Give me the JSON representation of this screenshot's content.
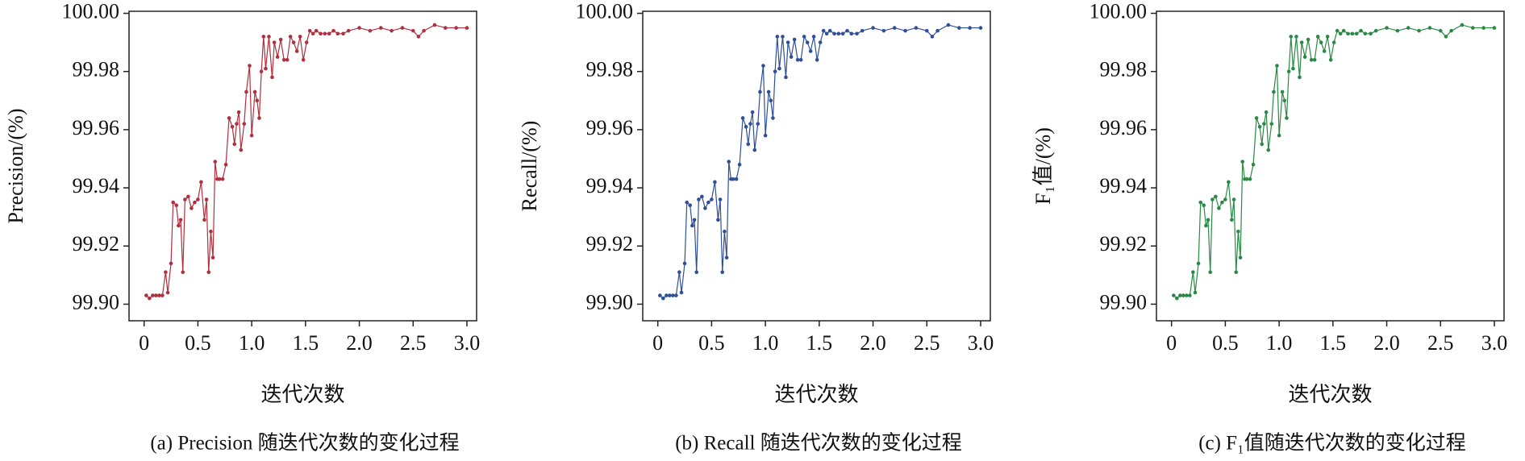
{
  "chart_data": [
    {
      "type": "line",
      "y_label": "Precision/(%)",
      "x_label": "迭代次数",
      "caption": "(a) Precision 随迭代次数的变化过程",
      "xlim": [
        -0.14,
        3.09
      ],
      "ylim": [
        99.8943,
        100.0007
      ],
      "xticks": [
        0,
        0.5,
        {
          "value": 1,
          "label": "1.0"
        },
        1.5,
        {
          "value": 2,
          "label": "2.0"
        },
        2.5,
        {
          "value": 3,
          "label": "3.0"
        }
      ],
      "yticks": [
        {
          "value": 99.9,
          "label": "99.90"
        },
        {
          "value": 99.92,
          "label": "99.92"
        },
        {
          "value": 99.94,
          "label": "99.94"
        },
        {
          "value": 99.96,
          "label": "99.96"
        },
        {
          "value": 99.98,
          "label": "99.98"
        },
        {
          "value": 100,
          "label": "100.00"
        }
      ],
      "x": [
        0.02,
        0.05,
        0.08,
        0.11,
        0.14,
        0.17,
        0.2,
        0.22,
        0.25,
        0.27,
        0.3,
        0.32,
        0.34,
        0.36,
        0.38,
        0.41,
        0.44,
        0.47,
        0.5,
        0.53,
        0.56,
        0.58,
        0.6,
        0.62,
        0.64,
        0.66,
        0.68,
        0.7,
        0.73,
        0.76,
        0.79,
        0.82,
        0.84,
        0.86,
        0.88,
        0.9,
        0.93,
        0.95,
        0.98,
        1.0,
        1.03,
        1.05,
        1.07,
        1.09,
        1.11,
        1.13,
        1.16,
        1.19,
        1.21,
        1.24,
        1.27,
        1.3,
        1.33,
        1.36,
        1.39,
        1.42,
        1.45,
        1.48,
        1.51,
        1.54,
        1.57,
        1.6,
        1.64,
        1.68,
        1.72,
        1.76,
        1.8,
        1.85,
        1.9,
        2.0,
        2.1,
        2.2,
        2.3,
        2.4,
        2.5,
        2.55,
        2.6,
        2.7,
        2.8,
        2.9,
        3.0
      ],
      "series": [
        {
          "color": "#b0303f",
          "values": [
            99.903,
            99.902,
            99.903,
            99.903,
            99.903,
            99.903,
            99.911,
            99.904,
            99.914,
            99.935,
            99.934,
            99.927,
            99.929,
            99.911,
            99.936,
            99.937,
            99.933,
            99.935,
            99.936,
            99.942,
            99.929,
            99.936,
            99.911,
            99.925,
            99.916,
            99.949,
            99.943,
            99.943,
            99.943,
            99.948,
            99.964,
            99.961,
            99.955,
            99.962,
            99.966,
            99.953,
            99.962,
            99.973,
            99.982,
            99.958,
            99.973,
            99.97,
            99.964,
            99.98,
            99.992,
            99.981,
            99.992,
            99.978,
            99.99,
            99.985,
            99.991,
            99.984,
            99.984,
            99.992,
            99.99,
            99.987,
            99.992,
            99.984,
            99.99,
            99.994,
            99.993,
            99.994,
            99.993,
            99.993,
            99.993,
            99.994,
            99.993,
            99.993,
            99.994,
            99.995,
            99.994,
            99.995,
            99.994,
            99.995,
            99.994,
            99.992,
            99.994,
            99.996,
            99.995,
            99.995,
            99.995
          ]
        }
      ]
    },
    {
      "type": "line",
      "y_label": "Recall/(%)",
      "x_label": "迭代次数",
      "caption": "(b) Recall 随迭代次数的变化过程",
      "xlim": [
        -0.14,
        3.09
      ],
      "ylim": [
        99.8943,
        100.0007
      ],
      "xticks": [
        0,
        0.5,
        {
          "value": 1,
          "label": "1.0"
        },
        1.5,
        {
          "value": 2,
          "label": "2.0"
        },
        2.5,
        {
          "value": 3,
          "label": "3.0"
        }
      ],
      "yticks": [
        {
          "value": 99.9,
          "label": "99.90"
        },
        {
          "value": 99.92,
          "label": "99.92"
        },
        {
          "value": 99.94,
          "label": "99.94"
        },
        {
          "value": 99.96,
          "label": "99.96"
        },
        {
          "value": 99.98,
          "label": "99.98"
        },
        {
          "value": 100,
          "label": "100.00"
        }
      ],
      "x": [
        0.02,
        0.05,
        0.08,
        0.11,
        0.14,
        0.17,
        0.2,
        0.22,
        0.25,
        0.27,
        0.3,
        0.32,
        0.34,
        0.36,
        0.38,
        0.41,
        0.44,
        0.47,
        0.5,
        0.53,
        0.56,
        0.58,
        0.6,
        0.62,
        0.64,
        0.66,
        0.68,
        0.7,
        0.73,
        0.76,
        0.79,
        0.82,
        0.84,
        0.86,
        0.88,
        0.9,
        0.93,
        0.95,
        0.98,
        1.0,
        1.03,
        1.05,
        1.07,
        1.09,
        1.11,
        1.13,
        1.16,
        1.19,
        1.21,
        1.24,
        1.27,
        1.3,
        1.33,
        1.36,
        1.39,
        1.42,
        1.45,
        1.48,
        1.51,
        1.54,
        1.57,
        1.6,
        1.64,
        1.68,
        1.72,
        1.76,
        1.8,
        1.85,
        1.9,
        2.0,
        2.1,
        2.2,
        2.3,
        2.4,
        2.5,
        2.55,
        2.6,
        2.7,
        2.8,
        2.9,
        3.0
      ],
      "series": [
        {
          "color": "#2f4f9a",
          "values": [
            99.903,
            99.902,
            99.903,
            99.903,
            99.903,
            99.903,
            99.911,
            99.904,
            99.914,
            99.935,
            99.934,
            99.927,
            99.929,
            99.911,
            99.936,
            99.937,
            99.933,
            99.935,
            99.936,
            99.942,
            99.929,
            99.936,
            99.911,
            99.925,
            99.916,
            99.949,
            99.943,
            99.943,
            99.943,
            99.948,
            99.964,
            99.961,
            99.955,
            99.962,
            99.966,
            99.953,
            99.962,
            99.973,
            99.982,
            99.958,
            99.973,
            99.97,
            99.964,
            99.98,
            99.992,
            99.981,
            99.992,
            99.978,
            99.99,
            99.985,
            99.991,
            99.984,
            99.984,
            99.992,
            99.99,
            99.987,
            99.992,
            99.984,
            99.99,
            99.994,
            99.993,
            99.994,
            99.993,
            99.993,
            99.993,
            99.994,
            99.993,
            99.993,
            99.994,
            99.995,
            99.994,
            99.995,
            99.994,
            99.995,
            99.994,
            99.992,
            99.994,
            99.996,
            99.995,
            99.995,
            99.995
          ]
        }
      ]
    },
    {
      "type": "line",
      "y_label": "F₁值/(%)",
      "x_label": "迭代次数",
      "caption": "(c) F₁值随迭代次数的变化过程",
      "xlim": [
        -0.14,
        3.09
      ],
      "ylim": [
        99.8943,
        100.0007
      ],
      "xticks": [
        0,
        0.5,
        {
          "value": 1,
          "label": "1.0"
        },
        1.5,
        {
          "value": 2,
          "label": "2.0"
        },
        2.5,
        {
          "value": 3,
          "label": "3.0"
        }
      ],
      "yticks": [
        {
          "value": 99.9,
          "label": "99.90"
        },
        {
          "value": 99.92,
          "label": "99.92"
        },
        {
          "value": 99.94,
          "label": "99.94"
        },
        {
          "value": 99.96,
          "label": "99.96"
        },
        {
          "value": 99.98,
          "label": "99.98"
        },
        {
          "value": 100,
          "label": "100.00"
        }
      ],
      "x": [
        0.02,
        0.05,
        0.08,
        0.11,
        0.14,
        0.17,
        0.2,
        0.22,
        0.25,
        0.27,
        0.3,
        0.32,
        0.34,
        0.36,
        0.38,
        0.41,
        0.44,
        0.47,
        0.5,
        0.53,
        0.56,
        0.58,
        0.6,
        0.62,
        0.64,
        0.66,
        0.68,
        0.7,
        0.73,
        0.76,
        0.79,
        0.82,
        0.84,
        0.86,
        0.88,
        0.9,
        0.93,
        0.95,
        0.98,
        1.0,
        1.03,
        1.05,
        1.07,
        1.09,
        1.11,
        1.13,
        1.16,
        1.19,
        1.21,
        1.24,
        1.27,
        1.3,
        1.33,
        1.36,
        1.39,
        1.42,
        1.45,
        1.48,
        1.51,
        1.54,
        1.57,
        1.6,
        1.64,
        1.68,
        1.72,
        1.76,
        1.8,
        1.85,
        1.9,
        2.0,
        2.1,
        2.2,
        2.3,
        2.4,
        2.5,
        2.55,
        2.6,
        2.7,
        2.8,
        2.9,
        3.0
      ],
      "series": [
        {
          "color": "#2a8a45",
          "values": [
            99.903,
            99.902,
            99.903,
            99.903,
            99.903,
            99.903,
            99.911,
            99.904,
            99.914,
            99.935,
            99.934,
            99.927,
            99.929,
            99.911,
            99.936,
            99.937,
            99.933,
            99.935,
            99.936,
            99.942,
            99.929,
            99.936,
            99.911,
            99.925,
            99.916,
            99.949,
            99.943,
            99.943,
            99.943,
            99.948,
            99.964,
            99.961,
            99.955,
            99.962,
            99.966,
            99.953,
            99.962,
            99.973,
            99.982,
            99.958,
            99.973,
            99.97,
            99.964,
            99.98,
            99.992,
            99.981,
            99.992,
            99.978,
            99.99,
            99.985,
            99.991,
            99.984,
            99.984,
            99.992,
            99.99,
            99.987,
            99.992,
            99.984,
            99.99,
            99.994,
            99.993,
            99.994,
            99.993,
            99.993,
            99.993,
            99.994,
            99.993,
            99.993,
            99.994,
            99.995,
            99.994,
            99.995,
            99.994,
            99.995,
            99.994,
            99.992,
            99.994,
            99.996,
            99.995,
            99.995,
            99.995
          ]
        }
      ]
    }
  ]
}
